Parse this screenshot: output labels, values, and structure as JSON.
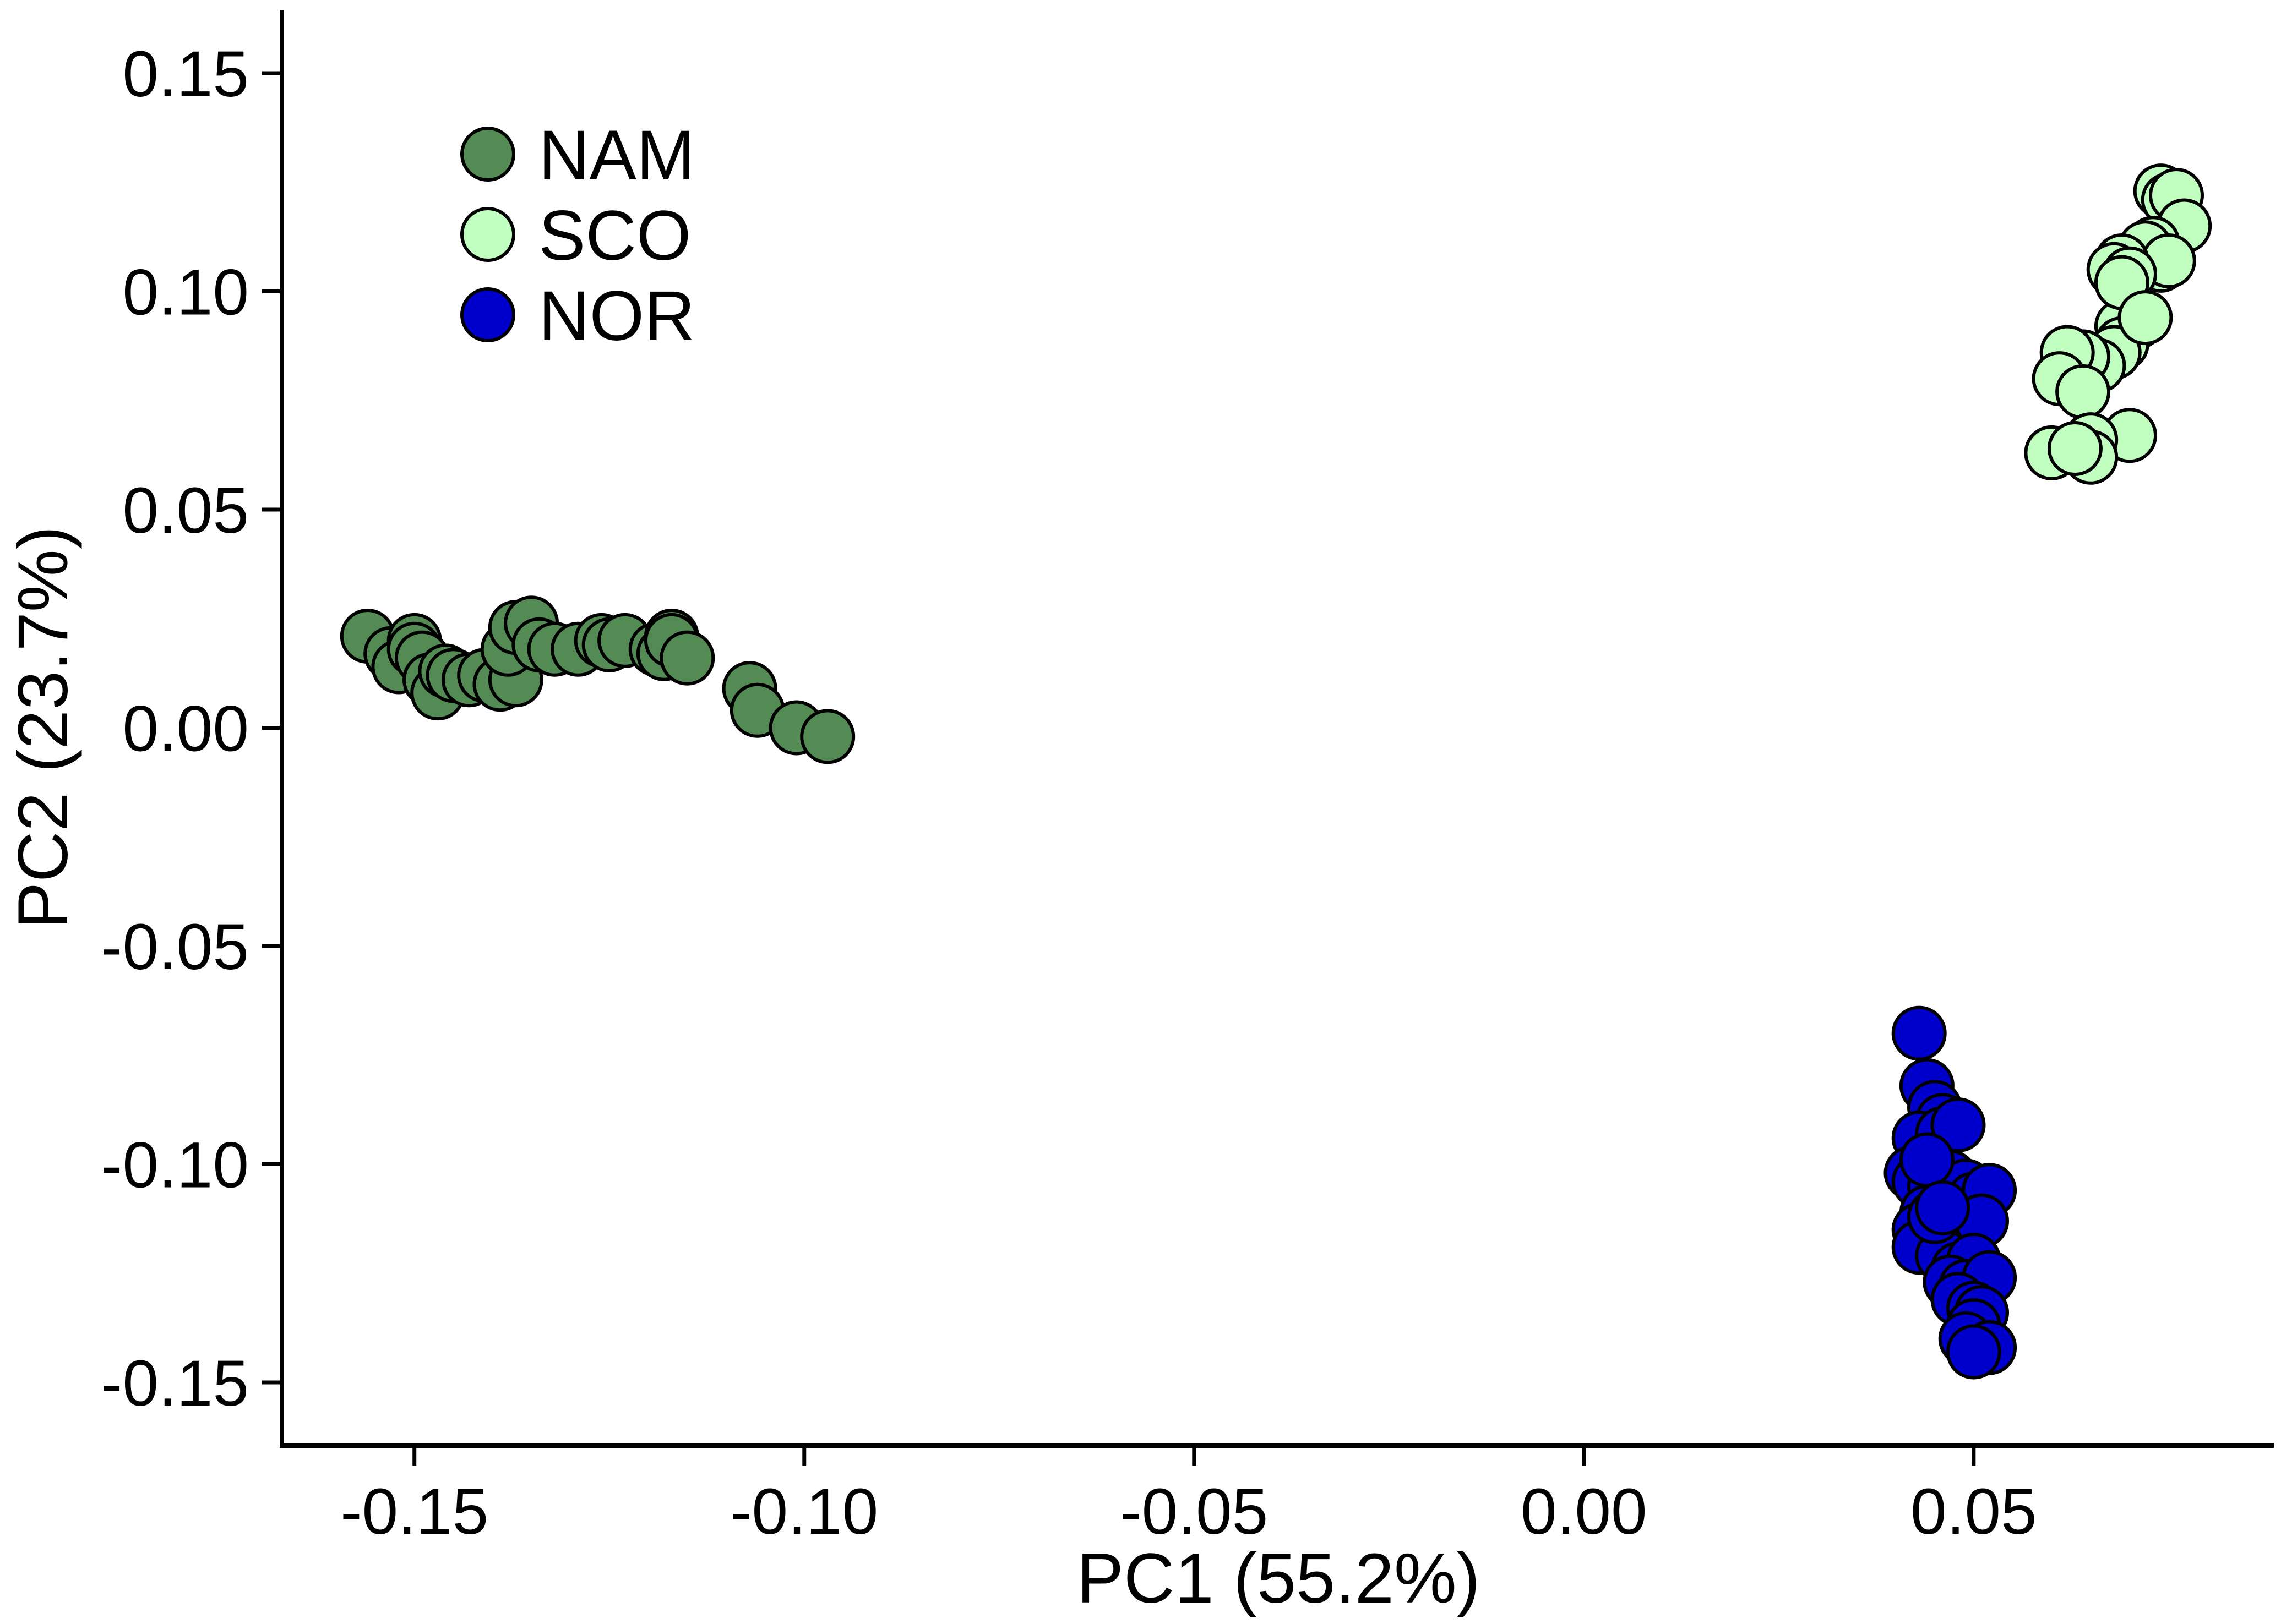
{
  "chart_data": {
    "type": "scatter",
    "xlabel": "PC1 (55.2%)",
    "ylabel": "PC2 (23.7%)",
    "xlim": [
      -0.167,
      0.0885
    ],
    "ylim": [
      -0.1645,
      0.1645
    ],
    "x_ticks": [
      -0.15,
      -0.1,
      -0.05,
      0.0,
      0.05
    ],
    "x_tick_labels": [
      "-0.15",
      "-0.10",
      "-0.05",
      "0.00",
      "0.05"
    ],
    "y_ticks": [
      0.15,
      0.1,
      0.05,
      0.0,
      -0.05,
      -0.1,
      -0.15
    ],
    "y_tick_labels": [
      "0.15",
      "0.10",
      "0.05",
      "0.00",
      "-0.05",
      "-0.10",
      "-0.15"
    ],
    "grid": false,
    "legend_position": "top-left",
    "series": [
      {
        "name": "NAM",
        "color": "#548b54",
        "points": [
          [
            -0.156,
            0.021
          ],
          [
            -0.153,
            0.017
          ],
          [
            -0.152,
            0.014
          ],
          [
            -0.15,
            0.02
          ],
          [
            -0.15,
            0.018
          ],
          [
            -0.149,
            0.016
          ],
          [
            -0.148,
            0.011
          ],
          [
            -0.147,
            0.008
          ],
          [
            -0.146,
            0.013
          ],
          [
            -0.145,
            0.012
          ],
          [
            -0.143,
            0.011
          ],
          [
            -0.141,
            0.012
          ],
          [
            -0.139,
            0.01
          ],
          [
            -0.137,
            0.011
          ],
          [
            -0.138,
            0.018
          ],
          [
            -0.137,
            0.023
          ],
          [
            -0.135,
            0.024
          ],
          [
            -0.134,
            0.019
          ],
          [
            -0.132,
            0.018
          ],
          [
            -0.129,
            0.018
          ],
          [
            -0.126,
            0.02
          ],
          [
            -0.125,
            0.019
          ],
          [
            -0.123,
            0.02
          ],
          [
            -0.119,
            0.018
          ],
          [
            -0.118,
            0.017
          ],
          [
            -0.117,
            0.021
          ],
          [
            -0.117,
            0.02
          ],
          [
            -0.115,
            0.016
          ],
          [
            -0.107,
            0.009
          ],
          [
            -0.106,
            0.004
          ],
          [
            -0.101,
            0.0
          ],
          [
            -0.097,
            -0.002
          ]
        ]
      },
      {
        "name": "SCO",
        "color": "#c1ffc1",
        "points": [
          [
            0.074,
            0.123
          ],
          [
            0.075,
            0.121
          ],
          [
            0.076,
            0.122
          ],
          [
            0.077,
            0.115
          ],
          [
            0.073,
            0.111
          ],
          [
            0.074,
            0.106
          ],
          [
            0.072,
            0.11
          ],
          [
            0.075,
            0.107
          ],
          [
            0.069,
            0.107
          ],
          [
            0.068,
            0.105
          ],
          [
            0.07,
            0.104
          ],
          [
            0.071,
            0.093
          ],
          [
            0.069,
            0.092
          ],
          [
            0.069,
            0.088
          ],
          [
            0.068,
            0.086
          ],
          [
            0.066,
            0.083
          ],
          [
            0.064,
            0.085
          ],
          [
            0.062,
            0.086
          ],
          [
            0.061,
            0.08
          ],
          [
            0.064,
            0.077
          ],
          [
            0.069,
            0.102
          ],
          [
            0.072,
            0.094
          ],
          [
            0.07,
            0.067
          ],
          [
            0.065,
            0.066
          ],
          [
            0.065,
            0.062
          ],
          [
            0.06,
            0.063
          ],
          [
            0.063,
            0.064
          ]
        ]
      },
      {
        "name": "NOR",
        "color": "#0000cd",
        "points": [
          [
            0.043,
            -0.07
          ],
          [
            0.044,
            -0.082
          ],
          [
            0.045,
            -0.087
          ],
          [
            0.046,
            -0.09
          ],
          [
            0.043,
            -0.094
          ],
          [
            0.046,
            -0.093
          ],
          [
            0.048,
            -0.091
          ],
          [
            0.044,
            -0.099
          ],
          [
            0.042,
            -0.102
          ],
          [
            0.043,
            -0.104
          ],
          [
            0.045,
            -0.105
          ],
          [
            0.047,
            -0.103
          ],
          [
            0.049,
            -0.105
          ],
          [
            0.05,
            -0.108
          ],
          [
            0.052,
            -0.106
          ],
          [
            0.044,
            -0.111
          ],
          [
            0.043,
            -0.115
          ],
          [
            0.047,
            -0.114
          ],
          [
            0.049,
            -0.117
          ],
          [
            0.051,
            -0.113
          ],
          [
            0.043,
            -0.119
          ],
          [
            0.046,
            -0.121
          ],
          [
            0.048,
            -0.124
          ],
          [
            0.05,
            -0.122
          ],
          [
            0.047,
            -0.127
          ],
          [
            0.049,
            -0.128
          ],
          [
            0.052,
            -0.126
          ],
          [
            0.048,
            -0.131
          ],
          [
            0.05,
            -0.133
          ],
          [
            0.051,
            -0.134
          ],
          [
            0.05,
            -0.137
          ],
          [
            0.049,
            -0.14
          ],
          [
            0.052,
            -0.142
          ],
          [
            0.05,
            -0.143
          ],
          [
            0.045,
            -0.112
          ],
          [
            0.044,
            -0.099
          ],
          [
            0.046,
            -0.11
          ]
        ]
      }
    ]
  }
}
